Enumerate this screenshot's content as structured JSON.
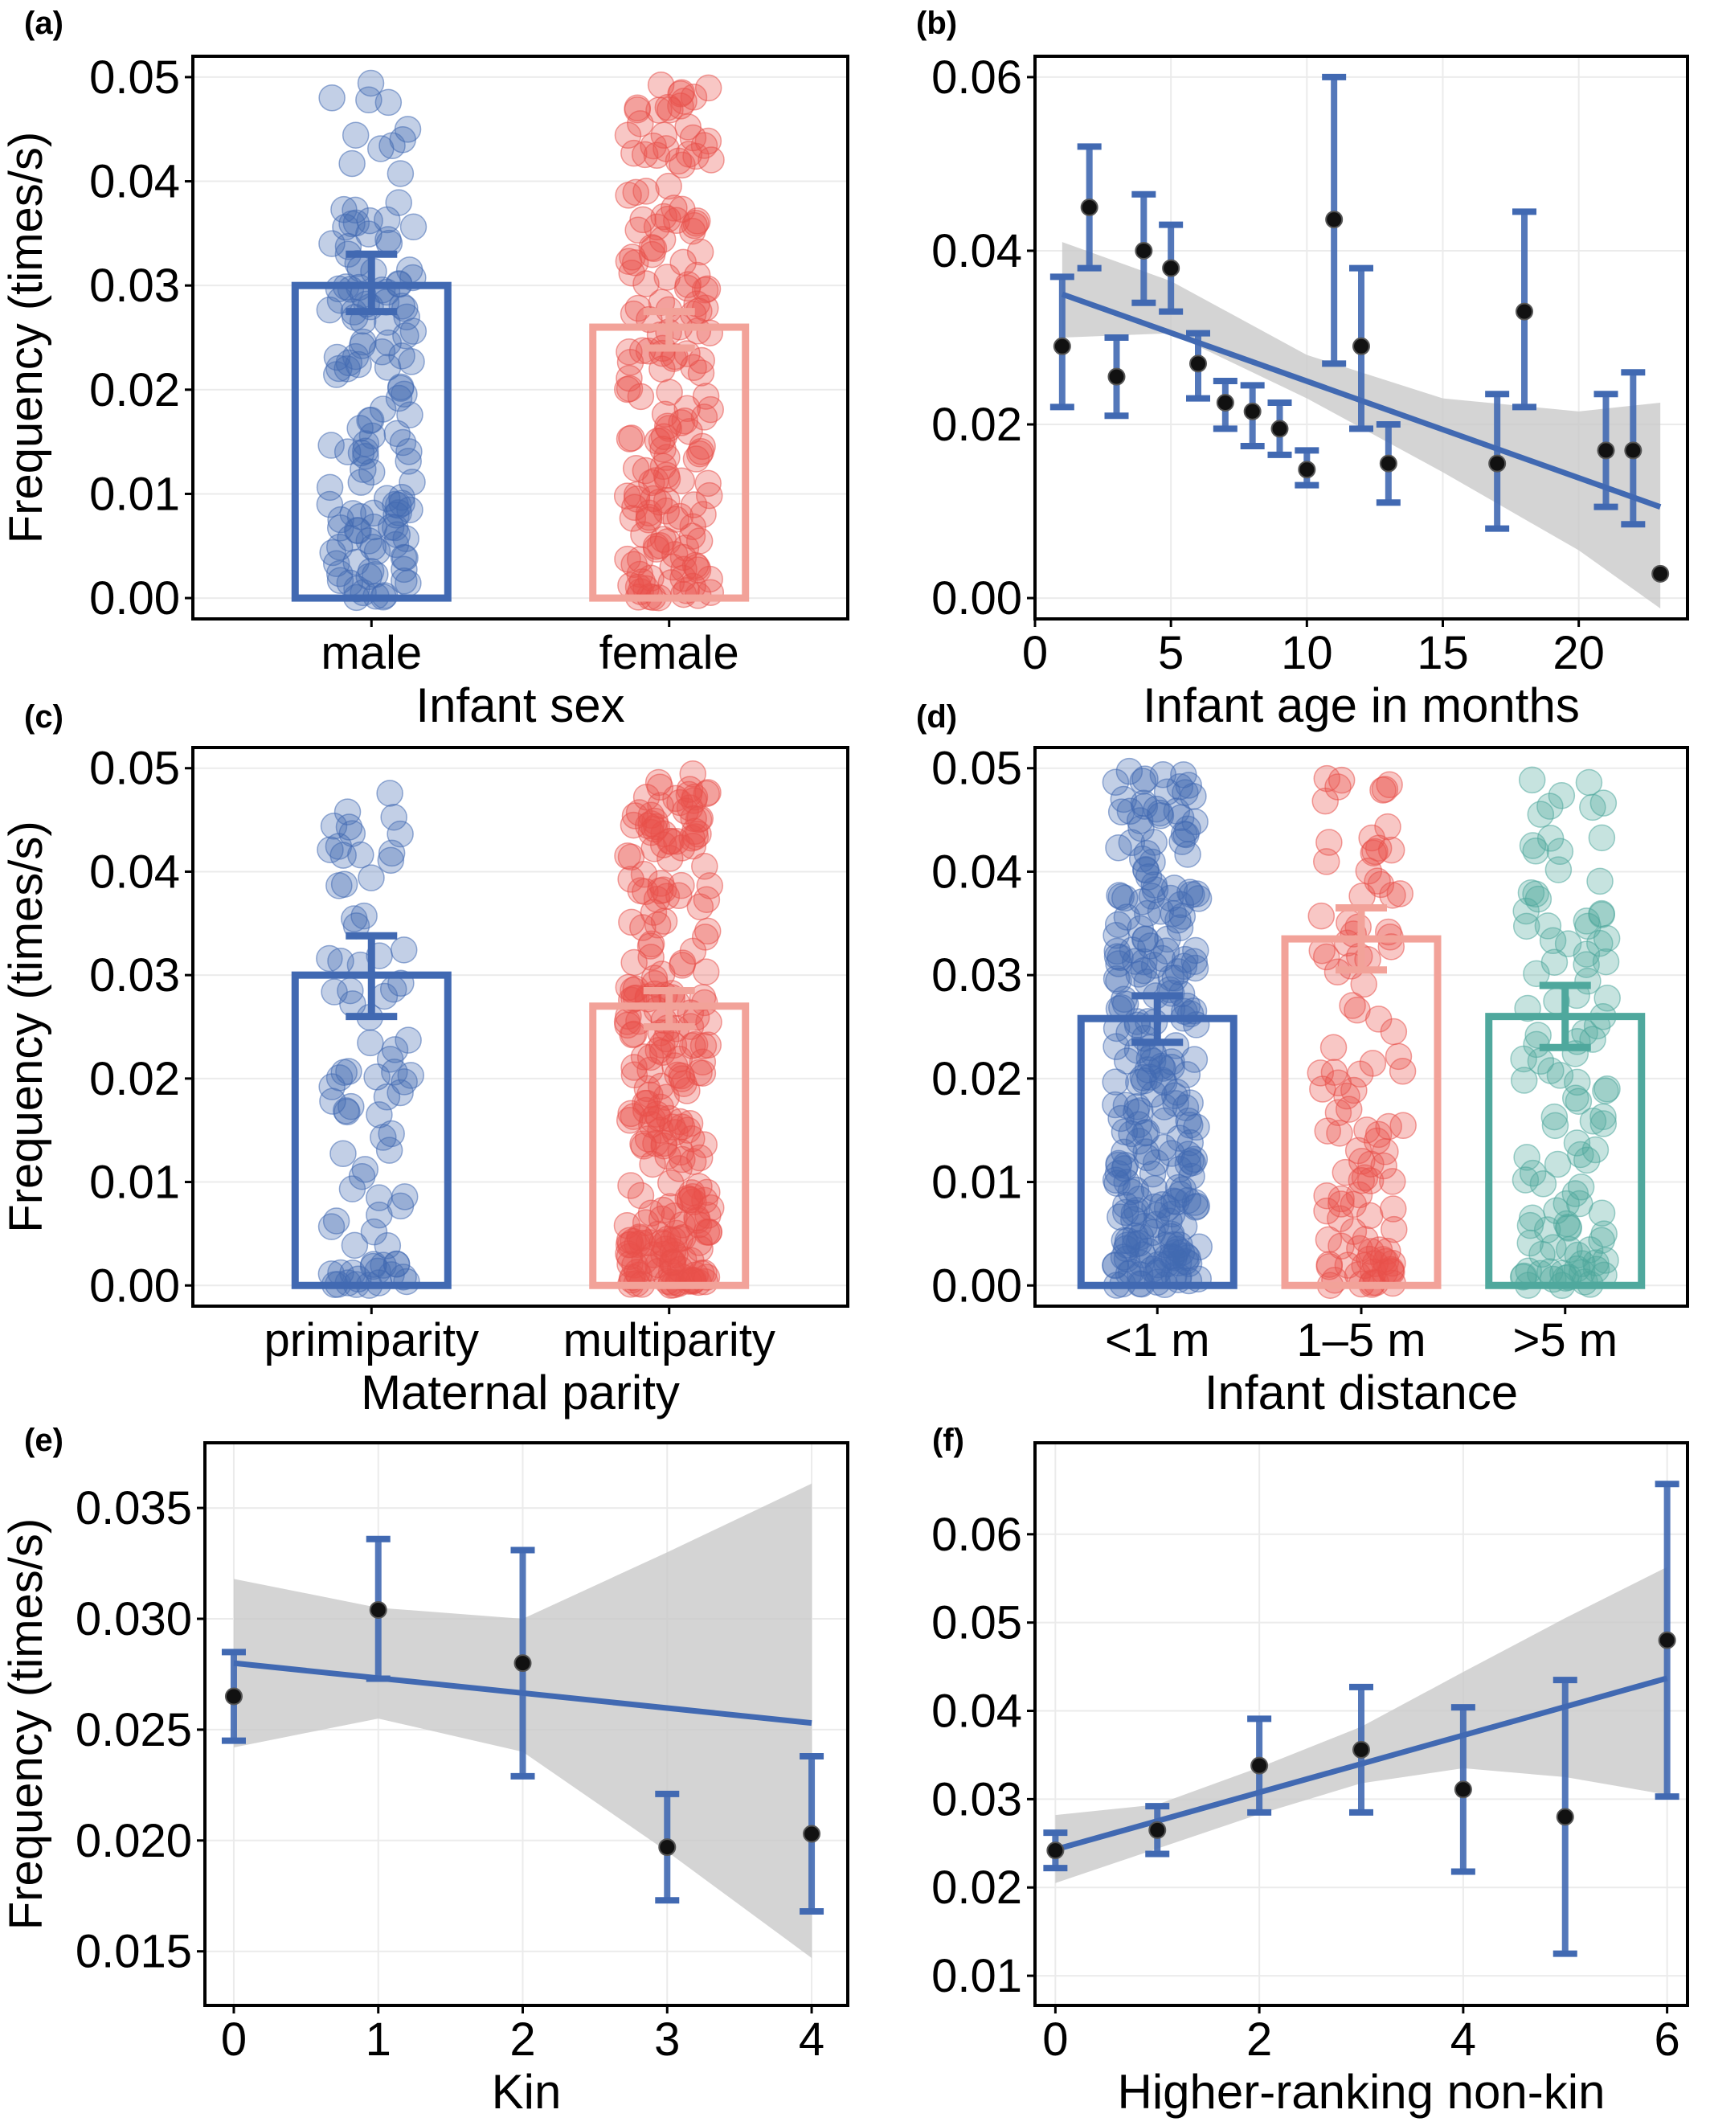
{
  "figure": {
    "colors": {
      "blue": "#4169b2",
      "salmon": "#f2a299",
      "red": "#e8504a",
      "teal": "#4fa89d",
      "band": "#c9c9c9",
      "point": "#111111"
    }
  },
  "chart_data": [
    {
      "panel": "(a)",
      "type": "bar",
      "ylabel": "Frequency (times/s)",
      "xlabel": "Infant sex",
      "ylim": [
        0,
        0.05
      ],
      "yticks": [
        "0.00",
        "0.01",
        "0.02",
        "0.03",
        "0.04",
        "0.05"
      ],
      "categories": [
        "male",
        "female"
      ],
      "values": [
        0.03,
        0.026
      ],
      "err_low": [
        0.0275,
        0.024
      ],
      "err_high": [
        0.033,
        0.0275
      ],
      "bar_colors": [
        "#4169b2",
        "#f2a299"
      ],
      "point_colors": [
        "#4169b2",
        "#e8504a"
      ],
      "point_counts": [
        140,
        180
      ]
    },
    {
      "panel": "(b)",
      "type": "scatter",
      "xlabel": "Infant age in months",
      "ylabel": "",
      "xlim": [
        0,
        24
      ],
      "ylim": [
        0,
        0.06
      ],
      "yticks": [
        "0.00",
        "0.02",
        "0.04",
        "0.06"
      ],
      "xticks": [
        "0",
        "5",
        "10",
        "15",
        "20"
      ],
      "points": [
        {
          "x": 1,
          "y": 0.029,
          "lo": 0.022,
          "hi": 0.037
        },
        {
          "x": 2,
          "y": 0.045,
          "lo": 0.038,
          "hi": 0.052
        },
        {
          "x": 3,
          "y": 0.0255,
          "lo": 0.021,
          "hi": 0.03
        },
        {
          "x": 4,
          "y": 0.04,
          "lo": 0.034,
          "hi": 0.0465
        },
        {
          "x": 5,
          "y": 0.038,
          "lo": 0.033,
          "hi": 0.043
        },
        {
          "x": 6,
          "y": 0.027,
          "lo": 0.023,
          "hi": 0.0305
        },
        {
          "x": 7,
          "y": 0.0225,
          "lo": 0.0195,
          "hi": 0.025
        },
        {
          "x": 8,
          "y": 0.0215,
          "lo": 0.0175,
          "hi": 0.0245
        },
        {
          "x": 9,
          "y": 0.0195,
          "lo": 0.0165,
          "hi": 0.0225
        },
        {
          "x": 10,
          "y": 0.0148,
          "lo": 0.013,
          "hi": 0.017
        },
        {
          "x": 11,
          "y": 0.0436,
          "lo": 0.027,
          "hi": 0.06
        },
        {
          "x": 12,
          "y": 0.029,
          "lo": 0.0195,
          "hi": 0.038
        },
        {
          "x": 13,
          "y": 0.0155,
          "lo": 0.011,
          "hi": 0.02
        },
        {
          "x": 17,
          "y": 0.0155,
          "lo": 0.008,
          "hi": 0.0235
        },
        {
          "x": 18,
          "y": 0.033,
          "lo": 0.022,
          "hi": 0.0445
        },
        {
          "x": 21,
          "y": 0.017,
          "lo": 0.0105,
          "hi": 0.0235
        },
        {
          "x": 22,
          "y": 0.017,
          "lo": 0.0085,
          "hi": 0.026
        },
        {
          "x": 23,
          "y": 0.0028,
          "lo": null,
          "hi": null
        }
      ],
      "fit": {
        "x0": 1,
        "y0": 0.035,
        "x1": 23,
        "y1": 0.0105
      },
      "band": [
        [
          1,
          0.03,
          0.041
        ],
        [
          5,
          0.0305,
          0.0365
        ],
        [
          10,
          0.023,
          0.028
        ],
        [
          15,
          0.0145,
          0.023
        ],
        [
          20,
          0.0055,
          0.0215
        ],
        [
          23,
          -0.0012,
          0.0225
        ]
      ]
    },
    {
      "panel": "(c)",
      "type": "bar",
      "ylabel": "Frequency (times/s)",
      "xlabel": "Maternal parity",
      "ylim": [
        0,
        0.05
      ],
      "yticks": [
        "0.00",
        "0.01",
        "0.02",
        "0.03",
        "0.04",
        "0.05"
      ],
      "categories": [
        "primiparity",
        "multiparity"
      ],
      "values": [
        0.03,
        0.027
      ],
      "err_low": [
        0.026,
        0.025
      ],
      "err_high": [
        0.0338,
        0.0285
      ],
      "bar_colors": [
        "#4169b2",
        "#f2a299"
      ],
      "point_colors": [
        "#4169b2",
        "#e8504a"
      ],
      "point_counts": [
        85,
        260
      ]
    },
    {
      "panel": "(d)",
      "type": "bar",
      "xlabel": "Infant distance",
      "ylabel": "",
      "ylim": [
        0,
        0.05
      ],
      "yticks": [
        "0.00",
        "0.01",
        "0.02",
        "0.03",
        "0.04",
        "0.05"
      ],
      "categories": [
        "<1 m",
        "1–5 m",
        ">5 m"
      ],
      "values": [
        0.0258,
        0.0335,
        0.026
      ],
      "err_low": [
        0.0235,
        0.0305,
        0.023
      ],
      "err_high": [
        0.028,
        0.0365,
        0.029
      ],
      "bar_colors": [
        "#4169b2",
        "#f2a299",
        "#4fa89d"
      ],
      "point_colors": [
        "#4169b2",
        "#e8504a",
        "#4fa89d"
      ],
      "point_counts": [
        260,
        110,
        110
      ]
    },
    {
      "panel": "(e)",
      "type": "scatter",
      "ylabel": "Frequency (times/s)",
      "xlabel": "Kin",
      "xlim": [
        -0.2,
        4.25
      ],
      "ylim": [
        0.0135,
        0.037
      ],
      "yticks": [
        "0.015",
        "0.020",
        "0.025",
        "0.030",
        "0.035"
      ],
      "xticks": [
        "0",
        "1",
        "2",
        "3",
        "4"
      ],
      "points": [
        {
          "x": 0,
          "y": 0.0265,
          "lo": 0.0245,
          "hi": 0.0285
        },
        {
          "x": 1,
          "y": 0.0304,
          "lo": 0.0273,
          "hi": 0.0336
        },
        {
          "x": 2,
          "y": 0.028,
          "lo": 0.0229,
          "hi": 0.0331
        },
        {
          "x": 3,
          "y": 0.0197,
          "lo": 0.0173,
          "hi": 0.0221
        },
        {
          "x": 4,
          "y": 0.0203,
          "lo": 0.0168,
          "hi": 0.0238
        }
      ],
      "fit": {
        "x0": 0,
        "y0": 0.028,
        "x1": 4,
        "y1": 0.0253
      },
      "band": [
        [
          0,
          0.0242,
          0.0318
        ],
        [
          1,
          0.0255,
          0.0305
        ],
        [
          2,
          0.024,
          0.03
        ],
        [
          3,
          0.0195,
          0.033
        ],
        [
          4,
          0.0147,
          0.0361
        ]
      ]
    },
    {
      "panel": "(f)",
      "type": "scatter",
      "xlabel": "Higher-ranking non-kin",
      "ylabel": "",
      "xlim": [
        -0.2,
        6.2
      ],
      "ylim": [
        0.009,
        0.068
      ],
      "yticks": [
        "0.01",
        "0.02",
        "0.03",
        "0.04",
        "0.05",
        "0.06"
      ],
      "xticks": [
        "0",
        "2",
        "4",
        "6"
      ],
      "points": [
        {
          "x": 0,
          "y": 0.0242,
          "lo": 0.0222,
          "hi": 0.0262
        },
        {
          "x": 1,
          "y": 0.0265,
          "lo": 0.0238,
          "hi": 0.0292
        },
        {
          "x": 2,
          "y": 0.0338,
          "lo": 0.0285,
          "hi": 0.0391
        },
        {
          "x": 3,
          "y": 0.0356,
          "lo": 0.0285,
          "hi": 0.0427
        },
        {
          "x": 4,
          "y": 0.0311,
          "lo": 0.0218,
          "hi": 0.0404
        },
        {
          "x": 5,
          "y": 0.028,
          "lo": 0.0125,
          "hi": 0.0435
        },
        {
          "x": 6,
          "y": 0.048,
          "lo": 0.0303,
          "hi": 0.0657
        }
      ],
      "fit": {
        "x0": 0,
        "y0": 0.0243,
        "x1": 6,
        "y1": 0.0437
      },
      "band": [
        [
          0,
          0.0205,
          0.0282
        ],
        [
          1,
          0.0244,
          0.0294
        ],
        [
          2,
          0.0283,
          0.0336
        ],
        [
          3,
          0.0318,
          0.0382
        ],
        [
          4,
          0.0335,
          0.0444
        ],
        [
          5,
          0.0325,
          0.0505
        ],
        [
          6,
          0.0305,
          0.0563
        ]
      ]
    }
  ]
}
